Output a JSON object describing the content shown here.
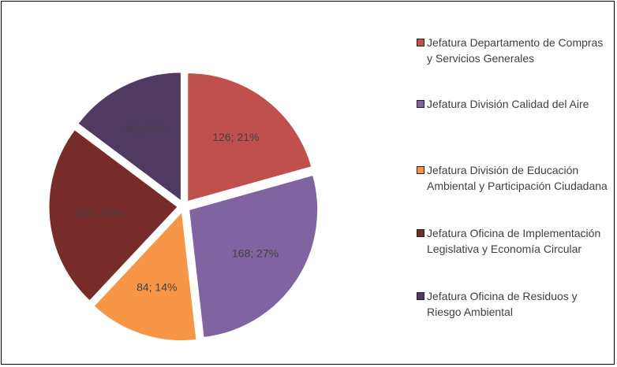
{
  "chart_data": {
    "type": "pie",
    "categories": [
      "Jefatura Departamento de Compras y Servicios Generales",
      "Jefatura División Calidad del Aire",
      "Jefatura División de Educación Ambiental y Participación Ciudadana",
      "Jefatura Oficina de Implementación Legislativa y Economía Circular",
      "Jefatura Oficina de Residuos y Riesgo Ambiental"
    ],
    "values": [
      126,
      168,
      84,
      142,
      90
    ],
    "value_labels": [
      "126; 21%",
      "168; 27%",
      "84; 14%",
      "142; 23%",
      "90; 15%"
    ],
    "colors": [
      "#c0504d",
      "#8064a2",
      "#f79646",
      "#772c2a",
      "#4f3b62"
    ],
    "legend": "right"
  }
}
